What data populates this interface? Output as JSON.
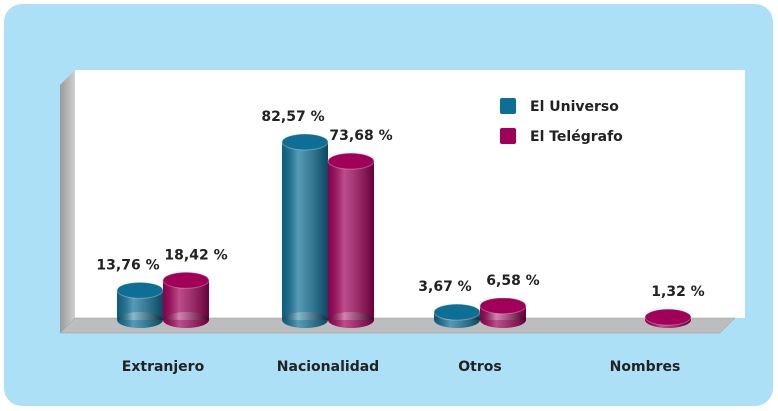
{
  "chart_data": {
    "type": "bar",
    "categories": [
      "Extranjero",
      "Nacionalidad",
      "Otros",
      "Nombres"
    ],
    "series": [
      {
        "name": "El Universo",
        "color": "#0e6f96",
        "values": [
          13.76,
          82.57,
          3.67,
          null
        ],
        "value_labels": [
          "13,76 %",
          "82,57 %",
          "3,67 %",
          null
        ]
      },
      {
        "name": "El Telégrafo",
        "color": "#a0005a",
        "values": [
          18.42,
          73.68,
          6.58,
          1.32
        ],
        "value_labels": [
          "18,42 %",
          "73,68 %",
          "6,58 %",
          "1,32 %"
        ]
      }
    ],
    "legend": "top-right"
  }
}
